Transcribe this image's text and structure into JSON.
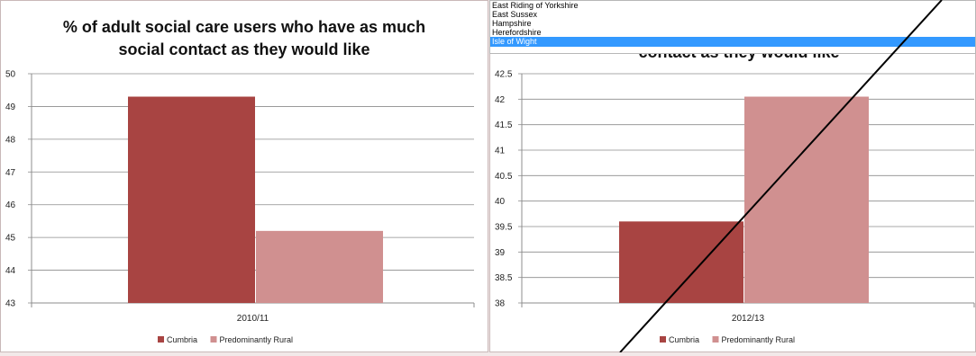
{
  "chart_data": [
    {
      "type": "bar",
      "title": "% of adult social care users who have as much social contact as they would like",
      "title_lines": [
        "% of adult social care users who have as much",
        "social contact as they would like"
      ],
      "categories": [
        "2010/11"
      ],
      "series": [
        {
          "name": "Cumbria",
          "values": [
            49.3
          ],
          "color": "#a84442"
        },
        {
          "name": "Predominantly Rural",
          "values": [
            45.2
          ],
          "color": "#d09090"
        }
      ],
      "ylim": [
        43,
        50
      ],
      "yticks": [
        "43",
        "44",
        "45",
        "46",
        "47",
        "48",
        "49",
        "50"
      ],
      "grid": true,
      "legend": "bottom"
    },
    {
      "type": "bar",
      "title_visible": "contact as they would like",
      "categories": [
        "2012/13"
      ],
      "series": [
        {
          "name": "Cumbria",
          "values": [
            39.6
          ],
          "color": "#a84442"
        },
        {
          "name": "Predominantly Rural",
          "values": [
            42.05
          ],
          "color": "#d09090"
        }
      ],
      "ylim": [
        38,
        42.5
      ],
      "yticks": [
        "38",
        "38.5",
        "39",
        "39.5",
        "40",
        "40.5",
        "41",
        "41.5",
        "42",
        "42.5"
      ],
      "grid": true,
      "legend": "bottom"
    }
  ],
  "dropdown": {
    "options": [
      "East Riding of Yorkshire",
      "East Sussex",
      "Hampshire",
      "Herefordshire",
      "Isle of Wight"
    ],
    "selected": "Isle of Wight"
  }
}
